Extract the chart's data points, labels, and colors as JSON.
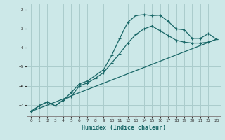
{
  "xlabel": "Humidex (Indice chaleur)",
  "bg_color": "#cce8e8",
  "grid_color": "#aacccc",
  "line_color": "#1a6868",
  "xlim": [
    -0.5,
    23.5
  ],
  "ylim": [
    -7.6,
    -1.7
  ],
  "yticks": [
    -7,
    -6,
    -5,
    -4,
    -3,
    -2
  ],
  "xticks": [
    0,
    1,
    2,
    3,
    4,
    5,
    6,
    7,
    8,
    9,
    10,
    11,
    12,
    13,
    14,
    15,
    16,
    17,
    18,
    19,
    20,
    21,
    22,
    23
  ],
  "curve1_x": [
    0,
    1,
    2,
    3,
    4,
    5,
    6,
    7,
    8,
    9,
    10,
    11,
    12,
    13,
    14,
    15,
    16,
    17,
    18,
    19,
    20,
    21,
    22,
    23
  ],
  "curve1_y": [
    -7.35,
    -7.05,
    -6.85,
    -7.05,
    -6.75,
    -6.35,
    -5.9,
    -5.75,
    -5.45,
    -5.15,
    -4.4,
    -3.5,
    -2.65,
    -2.3,
    -2.25,
    -2.3,
    -2.28,
    -2.6,
    -3.0,
    -3.05,
    -3.5,
    -3.5,
    -3.25,
    -3.55
  ],
  "curve2_x": [
    0,
    1,
    2,
    3,
    4,
    5,
    6,
    7,
    8,
    9,
    10,
    11,
    12,
    13,
    14,
    15,
    16,
    17,
    18,
    19,
    20,
    21,
    22,
    23
  ],
  "curve2_y": [
    -7.35,
    -7.05,
    -6.85,
    -7.05,
    -6.75,
    -6.55,
    -6.0,
    -5.85,
    -5.6,
    -5.3,
    -4.8,
    -4.3,
    -3.75,
    -3.3,
    -3.0,
    -2.85,
    -3.1,
    -3.35,
    -3.6,
    -3.7,
    -3.75,
    -3.75,
    -3.7,
    -3.55
  ],
  "line_x": [
    0,
    23
  ],
  "line_y": [
    -7.35,
    -3.55
  ]
}
